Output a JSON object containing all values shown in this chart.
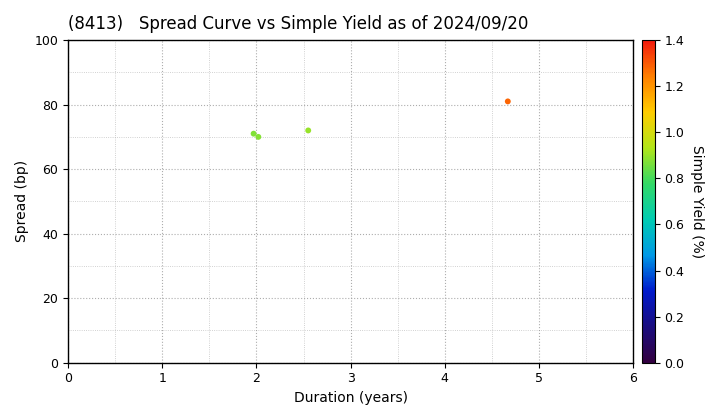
{
  "title": "(8413)   Spread Curve vs Simple Yield as of 2024/09/20",
  "xlabel": "Duration (years)",
  "ylabel": "Spread (bp)",
  "xlim": [
    0,
    6
  ],
  "ylim": [
    0,
    100
  ],
  "xticks": [
    0,
    1,
    2,
    3,
    4,
    5,
    6
  ],
  "yticks": [
    0,
    20,
    40,
    60,
    80,
    100
  ],
  "colorbar_label": "Simple Yield (%)",
  "colorbar_vmin": 0.0,
  "colorbar_vmax": 1.4,
  "colorbar_ticks": [
    0.0,
    0.2,
    0.4,
    0.6,
    0.8,
    1.0,
    1.2,
    1.4
  ],
  "points": [
    {
      "duration": 1.97,
      "spread": 71,
      "simple_yield": 0.87
    },
    {
      "duration": 2.02,
      "spread": 70,
      "simple_yield": 0.88
    },
    {
      "duration": 2.55,
      "spread": 72,
      "simple_yield": 0.9
    },
    {
      "duration": 4.67,
      "spread": 81,
      "simple_yield": 1.28
    }
  ],
  "marker_size": 18,
  "background_color": "#ffffff",
  "grid_color": "#999999",
  "title_fontsize": 12,
  "axis_fontsize": 10,
  "tick_fontsize": 9
}
